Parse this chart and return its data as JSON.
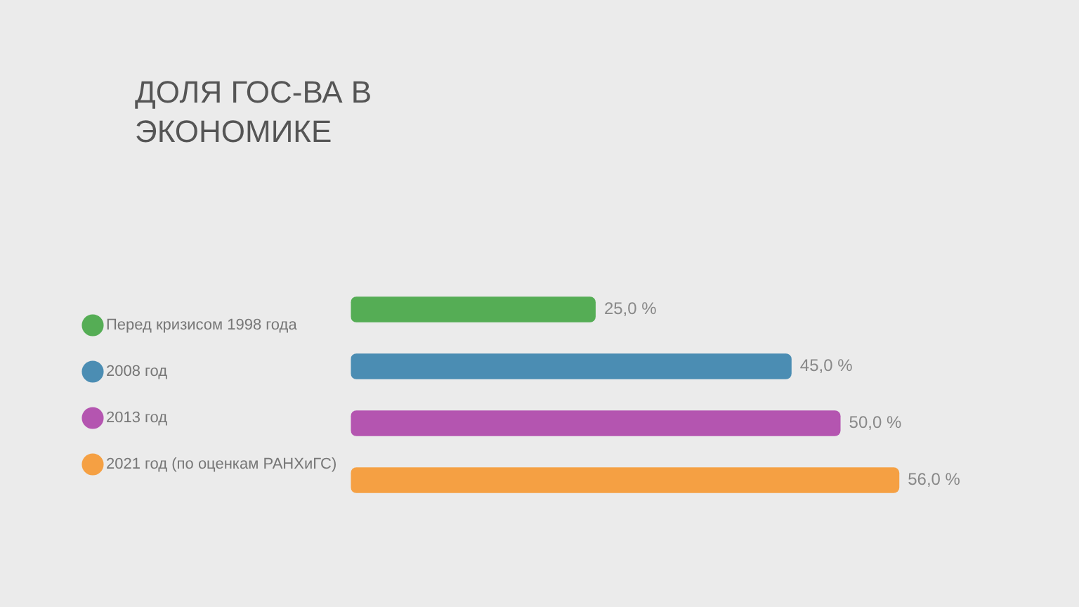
{
  "chart_data": {
    "type": "bar",
    "orientation": "horizontal",
    "stacked": true,
    "title": "ДОЛЯ ГОС-ВА В ЭКОНОМИКЕ",
    "categories": [
      null,
      null,
      null,
      null
    ],
    "series": [
      {
        "name": "Перед кризисом 1998 года",
        "color": "#55ad55",
        "values": [
          25,
          null,
          null,
          null
        ],
        "value_labels": [
          "25,0 %",
          null,
          null,
          null
        ]
      },
      {
        "name": "2008 год",
        "color": "#4b8db3",
        "values": [
          null,
          45,
          null,
          null
        ],
        "value_labels": [
          null,
          "45,0 %",
          null,
          null
        ]
      },
      {
        "name": "2013 год",
        "color": "#b455b0",
        "values": [
          null,
          null,
          50,
          null
        ],
        "value_labels": [
          null,
          null,
          "50,0 %",
          null
        ]
      },
      {
        "name": "2021 год (по оценкам РАНХиГС)",
        "color": "#f5a043",
        "values": [
          null,
          null,
          null,
          56
        ],
        "value_labels": [
          null,
          null,
          null,
          "56,0 %"
        ]
      }
    ],
    "legend": "left",
    "tick_labels": false
  }
}
